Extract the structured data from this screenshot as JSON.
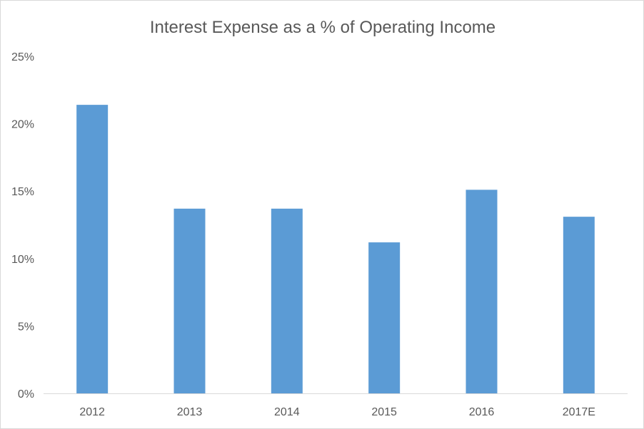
{
  "chart_data": {
    "type": "bar",
    "title": "Interest Expense as a % of Operating Income",
    "xlabel": "",
    "ylabel": "",
    "categories": [
      "2012",
      "2013",
      "2014",
      "2015",
      "2016",
      "2017E"
    ],
    "values": [
      21.4,
      13.7,
      13.7,
      11.2,
      15.1,
      13.1
    ],
    "ylim": [
      0,
      25
    ],
    "y_ticks": [
      0,
      5,
      10,
      15,
      20,
      25
    ],
    "y_tick_labels": [
      "0%",
      "5%",
      "10%",
      "15%",
      "20%",
      "25%"
    ],
    "grid": false,
    "legend": "none",
    "bar_color": "#5b9bd5",
    "axis_color": "#d9d9d9",
    "text_color": "#595959"
  }
}
